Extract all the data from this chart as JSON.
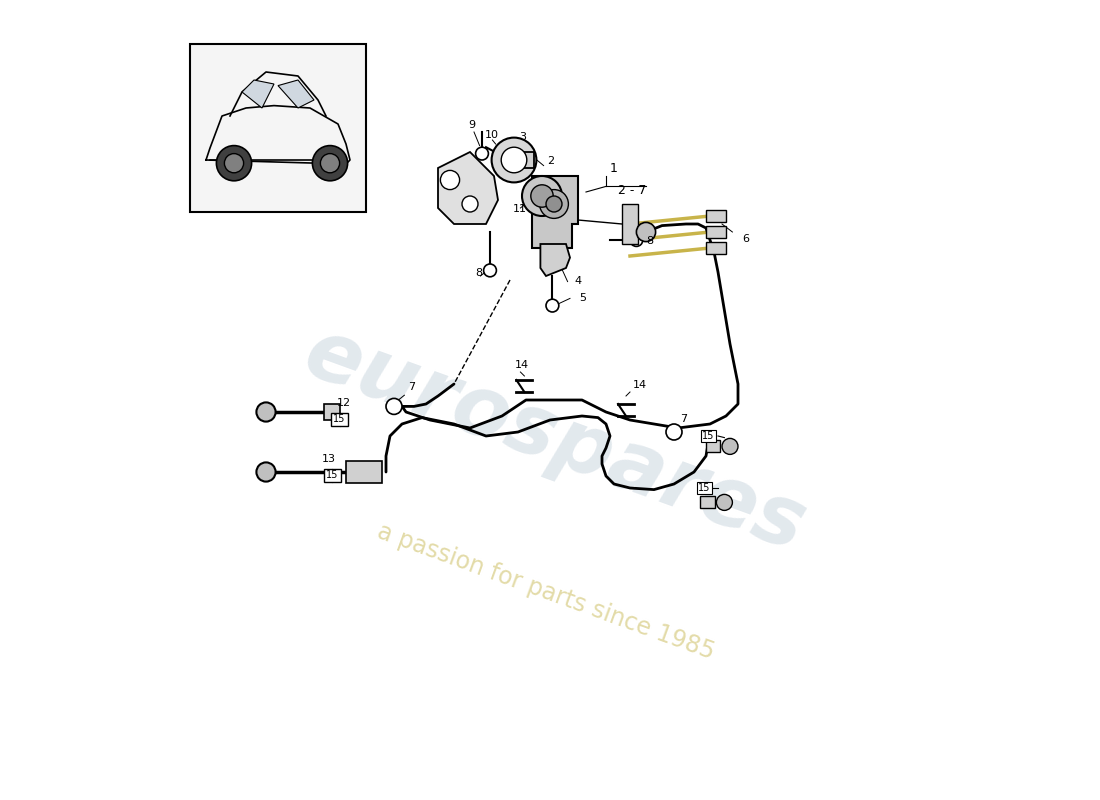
{
  "bg_color": "#ffffff",
  "line_color": "#000000",
  "part_color": "#d0d0d0",
  "wire_color": "#c8b44a",
  "watermark_text1": "eurospares",
  "watermark_text2": "a passion for parts since 1985",
  "watermark_color1": "#b8c8d4",
  "watermark_color2": "#d4c87a"
}
